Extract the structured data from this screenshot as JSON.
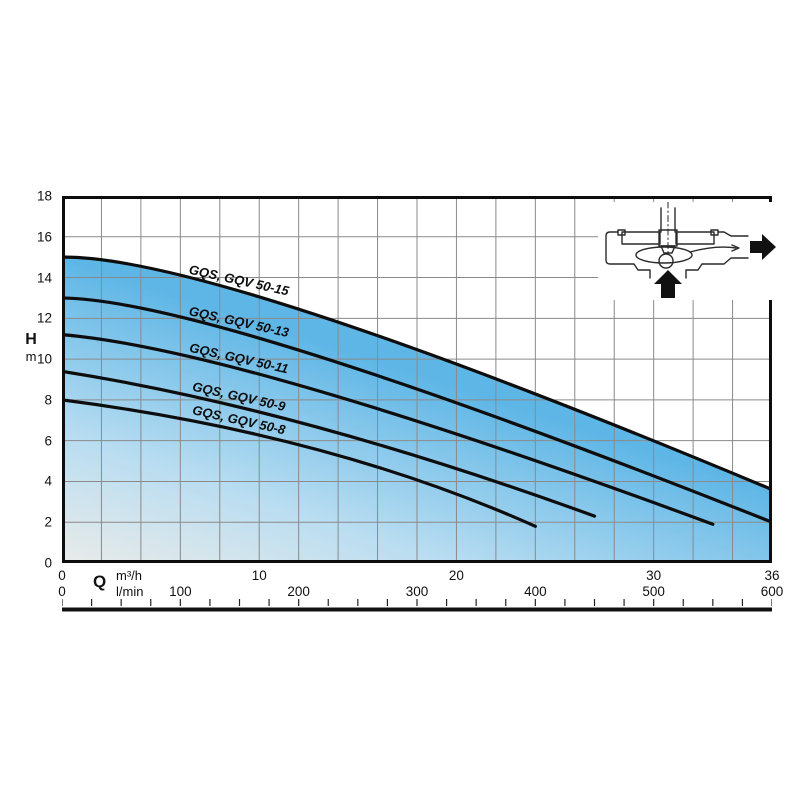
{
  "page": {
    "background": "#ffffff"
  },
  "icons": {
    "inset": "pump-cross-section-icon"
  },
  "chart_data": {
    "type": "line",
    "title": "",
    "legend_position": "on-curve",
    "grid": {
      "on": true,
      "x_step_m3h": 2,
      "y_step_m": 2
    },
    "y_axis": {
      "symbol": "H",
      "unit": "m",
      "min": 0,
      "max": 18,
      "ticks": [
        18,
        16,
        14,
        12,
        10,
        8,
        6,
        4,
        2,
        0
      ]
    },
    "x_axis": {
      "symbol": "Q",
      "rows": [
        {
          "unit": "m³/h",
          "min": 0,
          "max": 36,
          "ticks": [
            0,
            10,
            20,
            30,
            36
          ]
        },
        {
          "unit": "l/min",
          "min": 0,
          "max": 600,
          "ticks": [
            0,
            100,
            200,
            300,
            400,
            500,
            600
          ]
        }
      ],
      "ruler": {
        "min": 0,
        "max": 600,
        "minor_step": 25
      }
    },
    "series": [
      {
        "name": "GQS, GQV 50-15",
        "points_m3h_m": [
          [
            0,
            15.0
          ],
          [
            12.8,
            12.2
          ],
          [
            36,
            3.6
          ]
        ]
      },
      {
        "name": "GQS, GQV 50-13",
        "points_m3h_m": [
          [
            0,
            13.0
          ],
          [
            12.8,
            10.2
          ],
          [
            36,
            2.0
          ]
        ]
      },
      {
        "name": "GQS, GQV 50-11",
        "points_m3h_m": [
          [
            0,
            11.2
          ],
          [
            12.8,
            8.5
          ],
          [
            33,
            1.9
          ]
        ]
      },
      {
        "name": "GQS, GQV 50-9",
        "points_m3h_m": [
          [
            0,
            9.4
          ],
          [
            12.8,
            6.7
          ],
          [
            27,
            2.3
          ]
        ]
      },
      {
        "name": "GQS, GQV 50-8",
        "points_m3h_m": [
          [
            0,
            8.0
          ],
          [
            12.8,
            5.6
          ],
          [
            24,
            1.8
          ]
        ]
      }
    ],
    "area": {
      "under_series_index": 0,
      "gradient_stops": [
        "#e9ebe9",
        "#b9ddf1",
        "#5eb6e6"
      ]
    },
    "colors": {
      "curve": "#0d0d0d",
      "plot_border": "#0d0d0d",
      "grid": "#8a8a8a",
      "text": "#111111",
      "area_blue": "#5eb6e6",
      "area_light": "#e9ebe9"
    }
  }
}
